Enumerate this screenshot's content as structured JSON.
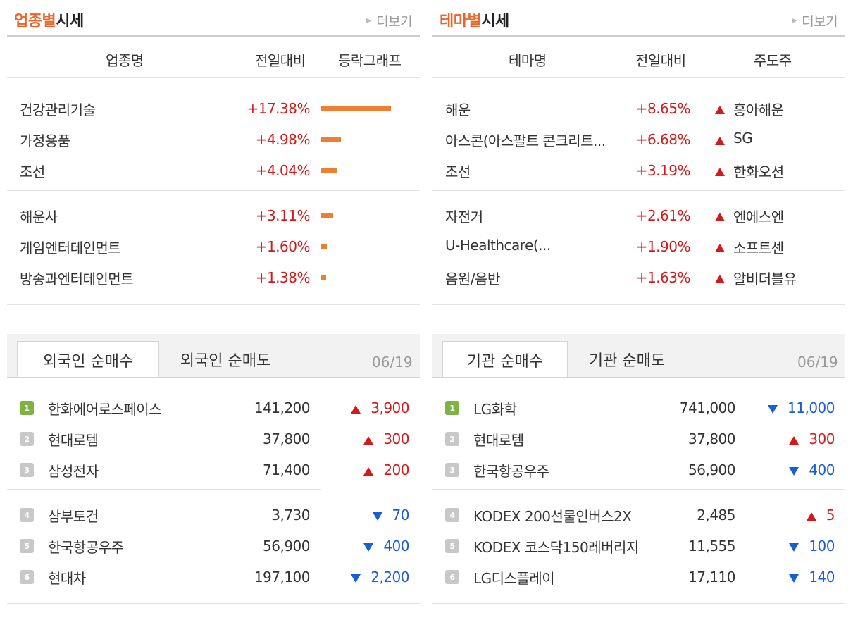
{
  "sector": {
    "title_accent": "업종별",
    "title_rest": "시세",
    "more": "더보기",
    "headers": [
      "업종명",
      "전일대비",
      "등락그래프"
    ],
    "rows": [
      {
        "name": "건강관리기술",
        "change": "+17.38%",
        "pct": 17.38
      },
      {
        "name": "가정용품",
        "change": "+4.98%",
        "pct": 4.98
      },
      {
        "name": "조선",
        "change": "+4.04%",
        "pct": 4.04
      },
      {
        "name": "해운사",
        "change": "+3.11%",
        "pct": 3.11
      },
      {
        "name": "게임엔터테인먼트",
        "change": "+1.60%",
        "pct": 1.6
      },
      {
        "name": "방송과엔터테인먼트",
        "change": "+1.38%",
        "pct": 1.38
      }
    ]
  },
  "theme": {
    "title_accent": "테마별",
    "title_rest": "시세",
    "more": "더보기",
    "headers": [
      "테마명",
      "전일대비",
      "주도주"
    ],
    "rows": [
      {
        "name": "해운",
        "change": "+8.65%",
        "leader": "흥아해운"
      },
      {
        "name": "아스콘(아스팔트 콘크리트...",
        "change": "+6.68%",
        "leader": "SG"
      },
      {
        "name": "조선",
        "change": "+3.19%",
        "leader": "한화오션"
      },
      {
        "name": "자전거",
        "change": "+2.61%",
        "leader": "엔에스엔"
      },
      {
        "name": "U-Healthcare(...",
        "change": "+1.90%",
        "leader": "소프트센"
      },
      {
        "name": "음원/음반",
        "change": "+1.63%",
        "leader": "알비더블유"
      }
    ]
  },
  "foreign": {
    "tab_active": "외국인 순매수",
    "tab_inactive": "외국인 순매도",
    "date": "06/19",
    "rows": [
      {
        "rank": "1",
        "name": "한화에어로스페이스",
        "price": "141,200",
        "dir": "up",
        "change": "3,900"
      },
      {
        "rank": "2",
        "name": "현대로템",
        "price": "37,800",
        "dir": "up",
        "change": "300"
      },
      {
        "rank": "3",
        "name": "삼성전자",
        "price": "71,400",
        "dir": "up",
        "change": "200"
      },
      {
        "rank": "4",
        "name": "삼부토건",
        "price": "3,730",
        "dir": "down",
        "change": "70"
      },
      {
        "rank": "5",
        "name": "한국항공우주",
        "price": "56,900",
        "dir": "down",
        "change": "400"
      },
      {
        "rank": "6",
        "name": "현대차",
        "price": "197,100",
        "dir": "down",
        "change": "2,200"
      }
    ]
  },
  "institution": {
    "tab_active": "기관 순매수",
    "tab_inactive": "기관 순매도",
    "date": "06/19",
    "rows": [
      {
        "rank": "1",
        "name": "LG화학",
        "price": "741,000",
        "dir": "down",
        "change": "11,000"
      },
      {
        "rank": "2",
        "name": "현대로템",
        "price": "37,800",
        "dir": "up",
        "change": "300"
      },
      {
        "rank": "3",
        "name": "한국항공우주",
        "price": "56,900",
        "dir": "down",
        "change": "400"
      },
      {
        "rank": "4",
        "name": "KODEX 200선물인버스2X",
        "price": "2,485",
        "dir": "up",
        "change": "5"
      },
      {
        "rank": "5",
        "name": "KODEX 코스닥150레버리지",
        "price": "11,555",
        "dir": "down",
        "change": "100"
      },
      {
        "rank": "6",
        "name": "LG디스플레이",
        "price": "17,110",
        "dir": "down",
        "change": "140"
      }
    ]
  },
  "colors": {
    "accent": "#e8662a",
    "up": "#d21a1a",
    "down": "#1a5fd2",
    "bar": "#ec7f33",
    "rank_first": "#7cb342",
    "rank_other": "#c8c8c8"
  }
}
